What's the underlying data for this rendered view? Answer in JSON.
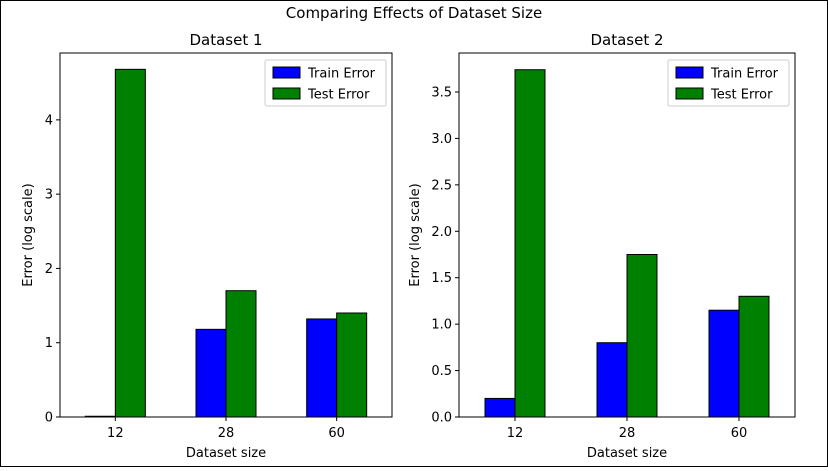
{
  "figure": {
    "suptitle": "Comparing Effects of Dataset Size"
  },
  "colors": {
    "train": "#0000ff",
    "test": "#008000",
    "edge": "#000000"
  },
  "chart_data": [
    {
      "type": "bar",
      "title": "Dataset 1",
      "xlabel": "Dataset size",
      "ylabel": "Error (log scale)",
      "categories": [
        "12",
        "28",
        "60"
      ],
      "ylim": [
        0,
        4.9
      ],
      "yticks": [
        0,
        1,
        2,
        3,
        4
      ],
      "ytick_labels": [
        "0",
        "1",
        "2",
        "3",
        "4"
      ],
      "legend": "top-right",
      "series": [
        {
          "name": "Train Error",
          "values": [
            0.01,
            1.18,
            1.32
          ]
        },
        {
          "name": "Test Error",
          "values": [
            4.68,
            1.7,
            1.4
          ]
        }
      ]
    },
    {
      "type": "bar",
      "title": "Dataset 2",
      "xlabel": "Dataset size",
      "ylabel": "Error (log scale)",
      "categories": [
        "12",
        "28",
        "60"
      ],
      "ylim": [
        0,
        3.92
      ],
      "yticks": [
        0,
        0.5,
        1,
        1.5,
        2,
        2.5,
        3,
        3.5
      ],
      "ytick_labels": [
        "0.0",
        "0.5",
        "1.0",
        "1.5",
        "2.0",
        "2.5",
        "3.0",
        "3.5"
      ],
      "legend": "top-right",
      "series": [
        {
          "name": "Train Error",
          "values": [
            0.2,
            0.8,
            1.15
          ]
        },
        {
          "name": "Test Error",
          "values": [
            3.74,
            1.75,
            1.3
          ]
        }
      ]
    }
  ]
}
